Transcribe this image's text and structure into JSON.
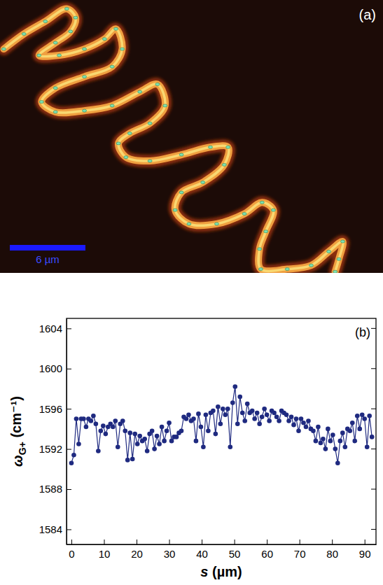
{
  "chart_data": [
    {
      "type": "map",
      "label": "(a)",
      "x": [
        0.3,
        1.9,
        3.6,
        5.3,
        6.0,
        5.6,
        4.4,
        3.1,
        4.7,
        6.7,
        8.3,
        9.2,
        9.7,
        8.9,
        6.7,
        4.4,
        3.3,
        4.4,
        6.7,
        8.9,
        11.1,
        12.5,
        13.1,
        11.9,
        10.3,
        9.4,
        10.0,
        11.9,
        14.4,
        16.7,
        18.1,
        17.8,
        16.1,
        14.4,
        13.9,
        15.0,
        17.2,
        19.4,
        20.8,
        21.7,
        21.1,
        20.6,
        20.7,
        22.8,
        24.7,
        26.1,
        27.2,
        26.9,
        26.6
      ],
      "y": [
        17.8,
        19.0,
        20.0,
        21.0,
        20.3,
        19.2,
        18.3,
        17.3,
        17.3,
        17.8,
        18.6,
        19.4,
        17.8,
        16.4,
        15.6,
        14.7,
        13.6,
        12.8,
        12.9,
        13.3,
        14.4,
        15.0,
        13.3,
        11.9,
        11.1,
        10.3,
        9.2,
        8.9,
        9.4,
        10.0,
        10.0,
        8.6,
        7.2,
        6.4,
        5.0,
        3.9,
        3.9,
        4.7,
        5.6,
        5.0,
        3.3,
        1.9,
        0.3,
        0.3,
        0.6,
        1.7,
        2.5,
        1.1,
        0.1
      ],
      "xlim": [
        0,
        30.4
      ],
      "ylim": [
        0,
        21.7
      ],
      "tick_labels": false,
      "color": "#f0a040",
      "marker": "dot",
      "scale_bar": {
        "value": 6,
        "label": "6 µm"
      }
    },
    {
      "type": "line",
      "label": "(b)",
      "xlabel": "s (µm)",
      "ylabel": "ωG+ (cm⁻¹)",
      "x": [
        0,
        0.75,
        1.5,
        2.25,
        3,
        3.75,
        4.5,
        5.25,
        6,
        6.75,
        7.5,
        8.25,
        9,
        9.75,
        10.5,
        11.25,
        12,
        12.75,
        13.5,
        14.25,
        15,
        15.75,
        16.5,
        17.25,
        18,
        18.75,
        19.5,
        20.25,
        21,
        21.75,
        22.5,
        23.25,
        24,
        24.75,
        25.5,
        26.25,
        27,
        27.75,
        28.5,
        29.25,
        30,
        30.75,
        31.5,
        32.25,
        33,
        33.75,
        34.5,
        35.25,
        36,
        36.75,
        37.5,
        38.25,
        39,
        39.75,
        40.5,
        41.25,
        42,
        42.75,
        43.5,
        44.25,
        45,
        45.75,
        46.5,
        47.25,
        48,
        48.75,
        49.5,
        50.25,
        51,
        51.75,
        52.5,
        53.25,
        54,
        54.75,
        55.5,
        56.25,
        57,
        57.75,
        58.5,
        59.25,
        60,
        60.75,
        61.5,
        62.25,
        63,
        63.75,
        64.5,
        65.25,
        66,
        66.75,
        67.5,
        68.25,
        69,
        69.75,
        70.5,
        71.25,
        72,
        72.75,
        73.5,
        74.25,
        75,
        75.75,
        76.5,
        77.25,
        78,
        78.75,
        79.5,
        80.25,
        81,
        81.75,
        82.5,
        83.25,
        84,
        84.75,
        85.5,
        86.25,
        87,
        87.75,
        88.5,
        89.25,
        90,
        90.75,
        91.5,
        92.25
      ],
      "values": [
        1590.6,
        1591.4,
        1595.0,
        1592.5,
        1595.0,
        1595.0,
        1594.2,
        1595.0,
        1594.8,
        1595.3,
        1594.5,
        1591.8,
        1593.8,
        1594.3,
        1593.5,
        1594.2,
        1594.5,
        1594.2,
        1594.8,
        1592.2,
        1594.5,
        1594.8,
        1593.8,
        1590.9,
        1593.6,
        1591.0,
        1593.5,
        1592.5,
        1593.3,
        1592.8,
        1593.0,
        1591.8,
        1593.5,
        1593.8,
        1592.0,
        1593.3,
        1592.5,
        1594.2,
        1592.8,
        1593.8,
        1594.6,
        1592.8,
        1593.2,
        1593.2,
        1593.6,
        1593.8,
        1595.2,
        1595.0,
        1595.4,
        1594.8,
        1595.0,
        1592.8,
        1595.5,
        1594.2,
        1592.2,
        1595.4,
        1593.8,
        1595.6,
        1595.8,
        1593.5,
        1596.2,
        1594.5,
        1596.0,
        1595.4,
        1596.0,
        1592.2,
        1596.6,
        1598.2,
        1594.5,
        1597.2,
        1595.6,
        1594.8,
        1596.5,
        1595.6,
        1595.8,
        1595.0,
        1595.6,
        1594.5,
        1595.2,
        1596.0,
        1595.4,
        1594.8,
        1595.8,
        1595.6,
        1595.2,
        1594.8,
        1595.8,
        1595.6,
        1595.4,
        1594.8,
        1595.2,
        1594.4,
        1595.0,
        1593.8,
        1595.0,
        1594.6,
        1594.2,
        1594.8,
        1594.0,
        1593.8,
        1592.8,
        1594.2,
        1592.6,
        1593.0,
        1592.0,
        1594.0,
        1592.8,
        1593.4,
        1592.0,
        1590.6,
        1592.8,
        1593.6,
        1592.2,
        1594.0,
        1593.8,
        1594.6,
        1592.8,
        1595.3,
        1594.0,
        1595.4,
        1595.0,
        1592.2,
        1595.3,
        1593.2
      ],
      "color": "#1f2a80",
      "marker": "circle",
      "xlim": [
        -1.5,
        93.5
      ],
      "ylim": [
        1582.5,
        1605
      ],
      "xticks": [
        0,
        10,
        20,
        30,
        40,
        50,
        60,
        70,
        80,
        90
      ],
      "yticks": [
        1584,
        1588,
        1592,
        1596,
        1600,
        1604
      ],
      "grid": false
    }
  ]
}
